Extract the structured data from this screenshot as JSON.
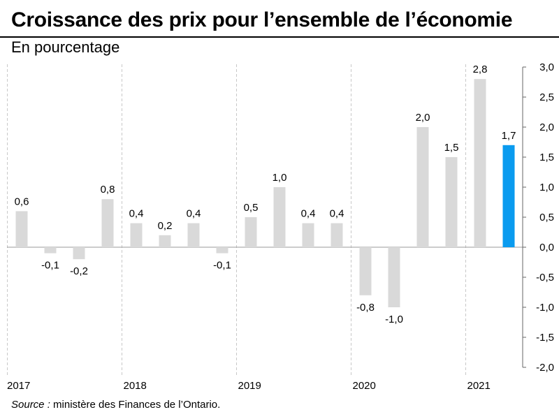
{
  "title": "Croissance des prix pour l’ensemble de l’économie",
  "subtitle": "En pourcentage",
  "source_label": "Source :",
  "source_text": " ministère des Finances de l’Ontario.",
  "colors": {
    "bar": "#d9d9d9",
    "highlight": "#0a9bef",
    "gridline": "#c8c8c8",
    "axis": "#666666"
  },
  "chart_data": {
    "type": "bar",
    "categories": [
      "2017-T1",
      "2017-T2",
      "2017-T3",
      "2017-T4",
      "2018-T1",
      "2018-T2",
      "2018-T3",
      "2018-T4",
      "2019-T1",
      "2019-T2",
      "2019-T3",
      "2019-T4",
      "2020-T1",
      "2020-T2",
      "2020-T3",
      "2020-T4",
      "2021-T1",
      "2021-T2"
    ],
    "values": [
      0.6,
      -0.1,
      -0.2,
      0.8,
      0.4,
      0.2,
      0.4,
      -0.1,
      0.5,
      1.0,
      0.4,
      0.4,
      -0.8,
      -1.0,
      2.0,
      1.5,
      2.8,
      1.7
    ],
    "data_labels": [
      "0,6",
      "-0,1",
      "-0,2",
      "0,8",
      "0,4",
      "0,2",
      "0,4",
      "-0,1",
      "0,5",
      "1,0",
      "0,4",
      "0,4",
      "-0,8",
      "-1,0",
      "2,0",
      "1,5",
      "2,8",
      "1,7"
    ],
    "highlight_index": 17,
    "year_labels": [
      "2017",
      "2018",
      "2019",
      "2020",
      "2021"
    ],
    "ylim": [
      -2.0,
      3.0
    ],
    "y_ticks": [
      3.0,
      2.5,
      2.0,
      1.5,
      1.0,
      0.5,
      0.0,
      -0.5,
      -1.0,
      -1.5,
      -2.0
    ],
    "y_tick_labels": [
      "3,0",
      "2,5",
      "2,0",
      "1,5",
      "1,0",
      "0,5",
      "0,0",
      "-0,5",
      "-1,0",
      "-1,5",
      "-2,0"
    ],
    "y_axis_position": "right",
    "grid": "vertical dashed separators between years"
  }
}
